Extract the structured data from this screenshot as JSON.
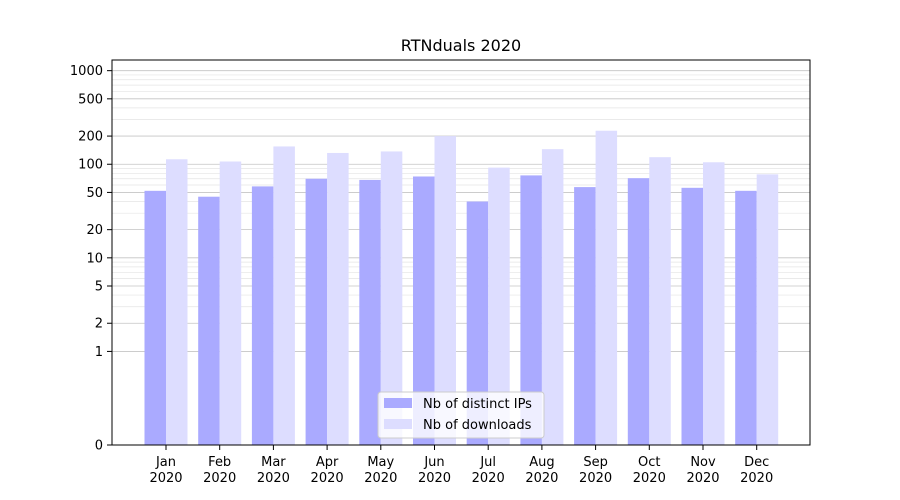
{
  "chart_data": {
    "type": "bar",
    "title": "RTNduals 2020",
    "xlabel": "",
    "ylabel": "",
    "y_scale": "symlog",
    "ylim": [
      0,
      1300
    ],
    "y_ticks": [
      0,
      1,
      2,
      5,
      10,
      20,
      50,
      100,
      200,
      500,
      1000
    ],
    "y_tick_labels": [
      "0",
      "1",
      "2",
      "5",
      "10",
      "20",
      "50",
      "100",
      "200",
      "500",
      "1000"
    ],
    "categories": [
      "Jan",
      "Feb",
      "Mar",
      "Apr",
      "May",
      "Jun",
      "Jul",
      "Aug",
      "Sep",
      "Oct",
      "Nov",
      "Dec"
    ],
    "category_year": "2020",
    "series": [
      {
        "name": "Nb of distinct IPs",
        "color": "#aaaaff",
        "values": [
          52,
          45,
          58,
          70,
          68,
          74,
          40,
          76,
          57,
          71,
          56,
          52
        ]
      },
      {
        "name": "Nb of downloads",
        "color": "#ddddff",
        "values": [
          113,
          107,
          155,
          132,
          137,
          200,
          92,
          145,
          228,
          119,
          105,
          78
        ]
      }
    ],
    "grid": true,
    "legend_position": "bottom-center"
  }
}
